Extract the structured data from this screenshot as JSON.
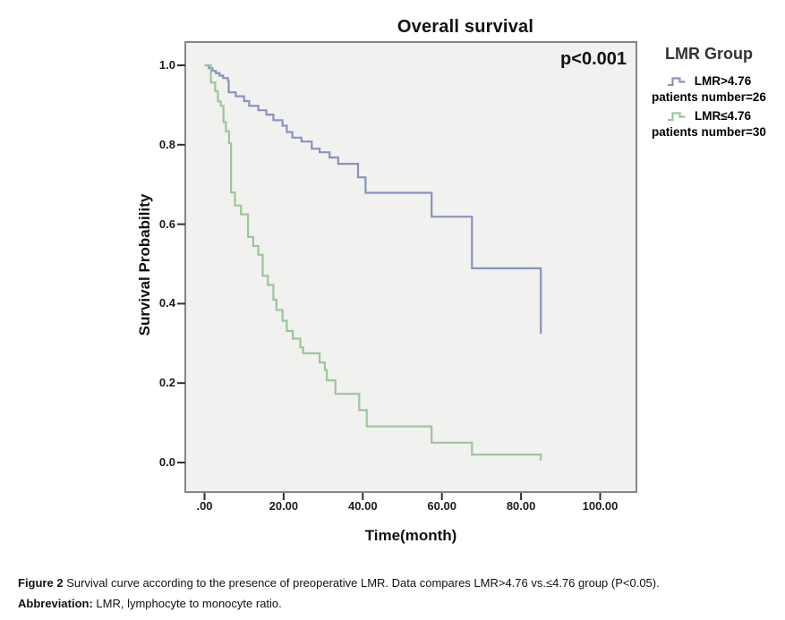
{
  "figure": {
    "title": "Overall survival",
    "p_value": "p<0.001",
    "x_axis": {
      "label": "Time(month)",
      "ticks": [
        ".00",
        "20.00",
        "40.00",
        "60.00",
        "80.00",
        "100.00"
      ],
      "tick_values": [
        0,
        20,
        40,
        60,
        80,
        100
      ]
    },
    "y_axis": {
      "label": "Survival Probability",
      "ticks": [
        "1.0",
        "0.8",
        "0.6",
        "0.4",
        "0.2",
        "0.0"
      ],
      "tick_values": [
        1.0,
        0.8,
        0.6,
        0.4,
        0.2,
        0.0
      ]
    },
    "legend": {
      "title": "LMR Group",
      "entries": [
        {
          "label": "LMR>4.76",
          "sub": "patients number=26",
          "color": "#8a92bd",
          "icon": "step-line-icon"
        },
        {
          "label": "LMR≤4.76",
          "sub": "patients number=30",
          "color": "#9cc69b",
          "icon": "step-line-icon"
        }
      ]
    }
  },
  "chart_data": {
    "type": "line",
    "subtype": "kaplan-meier-step",
    "title": "Overall survival",
    "xlabel": "Time(month)",
    "ylabel": "Survival Probability",
    "xlim": [
      0,
      100
    ],
    "ylim": [
      0.0,
      1.0
    ],
    "x_ticks": [
      0,
      20,
      40,
      60,
      80,
      100
    ],
    "y_ticks": [
      0.0,
      0.2,
      0.4,
      0.6,
      0.8,
      1.0
    ],
    "grid": false,
    "legend_position": "right-outside",
    "annotation": "p<0.001",
    "panel_bg": "#f1f1ef",
    "frame_color": "#868686",
    "series": [
      {
        "name": "LMR>4.76",
        "patients": "patients number=26",
        "color": "#8a92bd",
        "points": [
          [
            0,
            1.0
          ],
          [
            1.1,
            0.993
          ],
          [
            2.0,
            0.986
          ],
          [
            2.9,
            0.98
          ],
          [
            3.8,
            0.974
          ],
          [
            4.7,
            0.968
          ],
          [
            5.9,
            0.961
          ],
          [
            6.1,
            0.932
          ],
          [
            7.9,
            0.922
          ],
          [
            10.0,
            0.91
          ],
          [
            11.3,
            0.898
          ],
          [
            13.6,
            0.887
          ],
          [
            15.6,
            0.876
          ],
          [
            17.4,
            0.862
          ],
          [
            19.7,
            0.848
          ],
          [
            20.8,
            0.832
          ],
          [
            22.2,
            0.818
          ],
          [
            24.5,
            0.808
          ],
          [
            27.1,
            0.79
          ],
          [
            29.1,
            0.781
          ],
          [
            31.6,
            0.768
          ],
          [
            33.8,
            0.752
          ],
          [
            38.8,
            0.718
          ],
          [
            40.7,
            0.679
          ],
          [
            57.4,
            0.619
          ],
          [
            67.6,
            0.489
          ],
          [
            85.0,
            0.324
          ]
        ]
      },
      {
        "name": "LMR≤4.76",
        "patients": "patients number=30",
        "color": "#9cc69b",
        "points": [
          [
            0,
            1.0
          ],
          [
            1.6,
            0.957
          ],
          [
            2.7,
            0.935
          ],
          [
            3.4,
            0.909
          ],
          [
            4.1,
            0.898
          ],
          [
            4.8,
            0.857
          ],
          [
            5.4,
            0.834
          ],
          [
            6.2,
            0.804
          ],
          [
            6.7,
            0.68
          ],
          [
            7.7,
            0.647
          ],
          [
            9.2,
            0.625
          ],
          [
            11.0,
            0.568
          ],
          [
            12.3,
            0.545
          ],
          [
            13.6,
            0.523
          ],
          [
            14.7,
            0.47
          ],
          [
            16.0,
            0.447
          ],
          [
            17.4,
            0.41
          ],
          [
            18.2,
            0.384
          ],
          [
            19.7,
            0.357
          ],
          [
            20.8,
            0.331
          ],
          [
            22.3,
            0.312
          ],
          [
            24.2,
            0.29
          ],
          [
            24.9,
            0.275
          ],
          [
            29.1,
            0.252
          ],
          [
            30.4,
            0.233
          ],
          [
            30.9,
            0.207
          ],
          [
            33.1,
            0.173
          ],
          [
            39.1,
            0.132
          ],
          [
            41.0,
            0.091
          ],
          [
            57.4,
            0.05
          ],
          [
            67.6,
            0.02
          ],
          [
            85.0,
            0.02
          ],
          [
            85.0,
            0.005
          ]
        ]
      }
    ]
  },
  "caption": {
    "line1_bold": "Figure 2",
    "line1_rest": " Survival curve according to the presence of preoperative LMR. Data compares LMR>4.76 vs.≤4.76 group (P<0.05).",
    "line2_bold": "Abbreviation:",
    "line2_rest": " LMR, lymphocyte to monocyte ratio."
  }
}
